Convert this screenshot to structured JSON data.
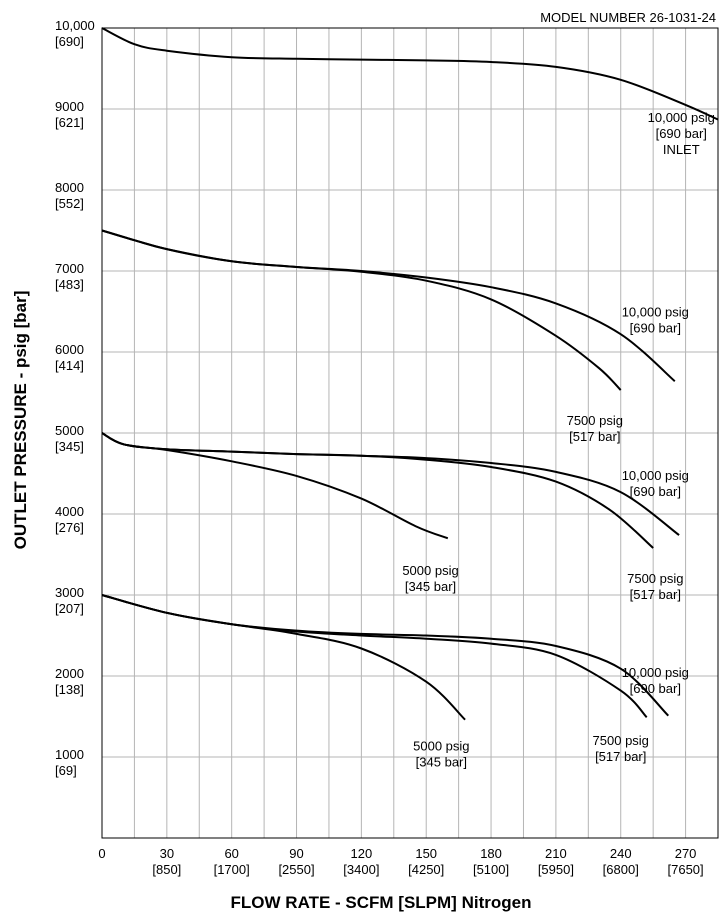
{
  "chart_data": {
    "type": "line",
    "model_label": "MODEL NUMBER  26-1031-24",
    "xlabel": "FLOW RATE - SCFM [SLPM] Nitrogen",
    "ylabel": "OUTLET PRESSURE - psig [bar]",
    "xlim": [
      0,
      285
    ],
    "ylim": [
      0,
      10000
    ],
    "grid": true,
    "x_ticks": [
      {
        "value": 0,
        "label": "0",
        "sub": ""
      },
      {
        "value": 30,
        "label": "30",
        "sub": "[850]"
      },
      {
        "value": 60,
        "label": "60",
        "sub": "[1700]"
      },
      {
        "value": 90,
        "label": "90",
        "sub": "[2550]"
      },
      {
        "value": 120,
        "label": "120",
        "sub": "[3400]"
      },
      {
        "value": 150,
        "label": "150",
        "sub": "[4250]"
      },
      {
        "value": 180,
        "label": "180",
        "sub": "[5100]"
      },
      {
        "value": 210,
        "label": "210",
        "sub": "[5950]"
      },
      {
        "value": 240,
        "label": "240",
        "sub": "[6800]"
      },
      {
        "value": 270,
        "label": "270",
        "sub": "[7650]"
      }
    ],
    "y_ticks": [
      {
        "value": 10000,
        "label": "10,000",
        "sub": "[690]"
      },
      {
        "value": 9000,
        "label": "9000",
        "sub": "[621]"
      },
      {
        "value": 8000,
        "label": "8000",
        "sub": "[552]"
      },
      {
        "value": 7000,
        "label": "7000",
        "sub": "[483]"
      },
      {
        "value": 6000,
        "label": "6000",
        "sub": "[414]"
      },
      {
        "value": 5000,
        "label": "5000",
        "sub": "[345]"
      },
      {
        "value": 4000,
        "label": "4000",
        "sub": "[276]"
      },
      {
        "value": 3000,
        "label": "3000",
        "sub": "[207]"
      },
      {
        "value": 2000,
        "label": "2000",
        "sub": "[138]"
      },
      {
        "value": 1000,
        "label": "1000",
        "sub": "[69]"
      }
    ],
    "series": [
      {
        "set": 10000,
        "inlet": 10000,
        "x": [
          0,
          15,
          30,
          60,
          90,
          120,
          150,
          180,
          210,
          240,
          270,
          285
        ],
        "y": [
          10000,
          9800,
          9720,
          9640,
          9620,
          9610,
          9600,
          9580,
          9520,
          9360,
          9050,
          8870
        ]
      },
      {
        "set": 7500,
        "inlet": 10000,
        "x": [
          0,
          15,
          30,
          60,
          90,
          120,
          150,
          180,
          210,
          240,
          265
        ],
        "y": [
          7500,
          7380,
          7270,
          7120,
          7050,
          7000,
          6920,
          6800,
          6600,
          6220,
          5640
        ]
      },
      {
        "set": 7500,
        "inlet": 7500,
        "x": [
          0,
          30,
          60,
          90,
          120,
          150,
          180,
          210,
          230,
          240
        ],
        "y": [
          7500,
          7270,
          7120,
          7050,
          6990,
          6880,
          6650,
          6200,
          5800,
          5530
        ]
      },
      {
        "set": 5000,
        "inlet": 10000,
        "x": [
          0,
          10,
          30,
          60,
          90,
          120,
          150,
          180,
          210,
          240,
          267
        ],
        "y": [
          5000,
          4860,
          4800,
          4770,
          4740,
          4720,
          4690,
          4630,
          4520,
          4270,
          3740
        ]
      },
      {
        "set": 5000,
        "inlet": 7500,
        "x": [
          0,
          10,
          30,
          60,
          90,
          120,
          150,
          180,
          210,
          235,
          255
        ],
        "y": [
          5000,
          4860,
          4800,
          4770,
          4740,
          4720,
          4670,
          4580,
          4400,
          4050,
          3580
        ]
      },
      {
        "set": 5000,
        "inlet": 5000,
        "x": [
          0,
          10,
          30,
          60,
          90,
          120,
          145,
          160
        ],
        "y": [
          5000,
          4860,
          4790,
          4650,
          4470,
          4190,
          3850,
          3700
        ]
      },
      {
        "set": 3000,
        "inlet": 10000,
        "x": [
          0,
          30,
          60,
          90,
          120,
          150,
          180,
          210,
          240,
          262
        ],
        "y": [
          3000,
          2780,
          2640,
          2560,
          2520,
          2500,
          2460,
          2370,
          2090,
          1510
        ]
      },
      {
        "set": 3000,
        "inlet": 7500,
        "x": [
          0,
          30,
          60,
          90,
          120,
          150,
          180,
          210,
          240,
          252
        ],
        "y": [
          3000,
          2780,
          2640,
          2550,
          2500,
          2460,
          2400,
          2260,
          1820,
          1490
        ]
      },
      {
        "set": 3000,
        "inlet": 5000,
        "x": [
          0,
          30,
          60,
          90,
          120,
          150,
          168
        ],
        "y": [
          3000,
          2780,
          2640,
          2520,
          2340,
          1930,
          1460
        ]
      }
    ],
    "annotations": [
      {
        "id": "inlet-10000-top",
        "x": 268,
        "y": 8840,
        "lines": [
          "10,000 psig",
          "[690 bar]",
          "INLET"
        ]
      },
      {
        "id": "inlet-10000-b2",
        "x": 256,
        "y": 6440,
        "lines": [
          "10,000 psig",
          "[690 bar]"
        ]
      },
      {
        "id": "inlet-7500-b2",
        "x": 228,
        "y": 5100,
        "lines": [
          "7500 psig",
          "[517 bar]"
        ]
      },
      {
        "id": "inlet-10000-b3",
        "x": 256,
        "y": 4420,
        "lines": [
          "10,000 psig",
          "[690 bar]"
        ]
      },
      {
        "id": "inlet-7500-b3",
        "x": 256,
        "y": 3150,
        "lines": [
          "7500 psig",
          "[517 bar]"
        ]
      },
      {
        "id": "inlet-5000-b3",
        "x": 152,
        "y": 3250,
        "lines": [
          "5000 psig",
          "[345 bar]"
        ]
      },
      {
        "id": "inlet-10000-b4",
        "x": 256,
        "y": 1990,
        "lines": [
          "10,000 psig",
          "[690 bar]"
        ]
      },
      {
        "id": "inlet-7500-b4",
        "x": 240,
        "y": 1150,
        "lines": [
          "7500 psig",
          "[517 bar]"
        ]
      },
      {
        "id": "inlet-5000-b4",
        "x": 157,
        "y": 1080,
        "lines": [
          "5000 psig",
          "[345 bar]"
        ]
      }
    ]
  }
}
